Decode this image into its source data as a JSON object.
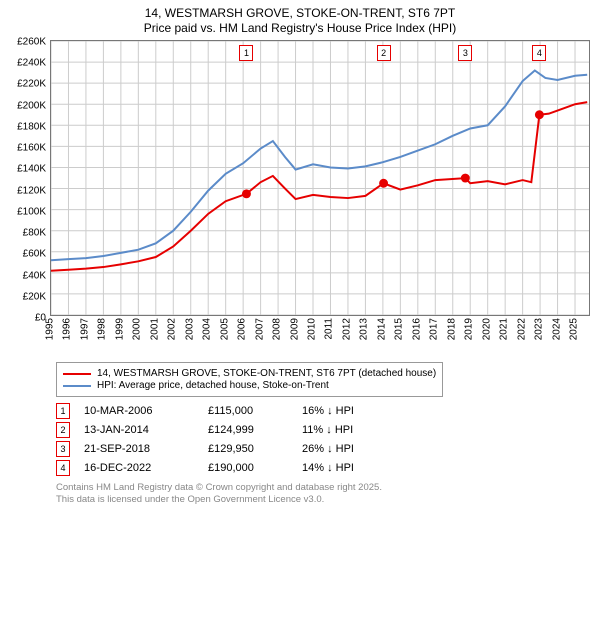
{
  "title": {
    "line1": "14, WESTMARSH GROVE, STOKE-ON-TRENT, ST6 7PT",
    "line2": "Price paid vs. HM Land Registry's House Price Index (HPI)",
    "fontsize": 12
  },
  "chart": {
    "type": "line",
    "background_color": "#ffffff",
    "grid_color": "#cccccc",
    "axis_color": "#777777",
    "ylim": [
      0,
      260000
    ],
    "ytick_step": 20000,
    "yticks": [
      "£0",
      "£20K",
      "£40K",
      "£60K",
      "£80K",
      "£100K",
      "£120K",
      "£140K",
      "£160K",
      "£180K",
      "£200K",
      "£220K",
      "£240K",
      "£260K"
    ],
    "xlim": [
      1995,
      2025.8
    ],
    "xticks": [
      "1995",
      "1996",
      "1997",
      "1998",
      "1999",
      "2000",
      "2001",
      "2002",
      "2003",
      "2004",
      "2005",
      "2006",
      "2007",
      "2008",
      "2009",
      "2010",
      "2011",
      "2012",
      "2013",
      "2014",
      "2015",
      "2016",
      "2017",
      "2018",
      "2019",
      "2020",
      "2021",
      "2022",
      "2023",
      "2024",
      "2025"
    ],
    "tick_fontsize": 10,
    "series": [
      {
        "name": "hpi",
        "label": "HPI: Average price, detached house, Stoke-on-Trent",
        "color": "#5b8bc9",
        "line_width": 2,
        "points": [
          [
            1995,
            52000
          ],
          [
            1996,
            53000
          ],
          [
            1997,
            54000
          ],
          [
            1998,
            56000
          ],
          [
            1999,
            59000
          ],
          [
            2000,
            62000
          ],
          [
            2001,
            68000
          ],
          [
            2002,
            80000
          ],
          [
            2003,
            98000
          ],
          [
            2004,
            118000
          ],
          [
            2005,
            134000
          ],
          [
            2006,
            144000
          ],
          [
            2007,
            158000
          ],
          [
            2007.7,
            165000
          ],
          [
            2008.4,
            150000
          ],
          [
            2009,
            138000
          ],
          [
            2010,
            143000
          ],
          [
            2011,
            140000
          ],
          [
            2012,
            139000
          ],
          [
            2013,
            141000
          ],
          [
            2014,
            145000
          ],
          [
            2015,
            150000
          ],
          [
            2016,
            156000
          ],
          [
            2017,
            162000
          ],
          [
            2018,
            170000
          ],
          [
            2019,
            177000
          ],
          [
            2020,
            180000
          ],
          [
            2021,
            198000
          ],
          [
            2022,
            222000
          ],
          [
            2022.7,
            232000
          ],
          [
            2023.3,
            225000
          ],
          [
            2024,
            223000
          ],
          [
            2025,
            227000
          ],
          [
            2025.7,
            228000
          ]
        ]
      },
      {
        "name": "property",
        "label": "14, WESTMARSH GROVE, STOKE-ON-TRENT, ST6 7PT (detached house)",
        "color": "#e60000",
        "line_width": 2.5,
        "points": [
          [
            1995,
            42000
          ],
          [
            1996,
            43000
          ],
          [
            1997,
            44000
          ],
          [
            1998,
            45500
          ],
          [
            1999,
            48000
          ],
          [
            2000,
            51000
          ],
          [
            2001,
            55000
          ],
          [
            2002,
            65000
          ],
          [
            2003,
            80000
          ],
          [
            2004,
            96000
          ],
          [
            2005,
            108000
          ],
          [
            2006.19,
            115000
          ],
          [
            2007,
            126000
          ],
          [
            2007.7,
            132000
          ],
          [
            2008.4,
            120000
          ],
          [
            2009,
            110000
          ],
          [
            2010,
            114000
          ],
          [
            2011,
            112000
          ],
          [
            2012,
            111000
          ],
          [
            2013,
            113000
          ],
          [
            2014.04,
            124999
          ],
          [
            2015,
            119000
          ],
          [
            2016,
            123000
          ],
          [
            2017,
            128000
          ],
          [
            2018.72,
            129950
          ],
          [
            2019,
            125000
          ],
          [
            2020,
            127000
          ],
          [
            2021,
            124000
          ],
          [
            2022,
            128000
          ],
          [
            2022.5,
            126000
          ],
          [
            2022.96,
            190000
          ],
          [
            2023.5,
            191000
          ],
          [
            2024,
            194000
          ],
          [
            2025,
            200000
          ],
          [
            2025.7,
            202000
          ]
        ]
      }
    ],
    "sale_markers": [
      {
        "idx": "1",
        "year": 2006.19,
        "price": 115000
      },
      {
        "idx": "2",
        "year": 2014.04,
        "price": 124999
      },
      {
        "idx": "3",
        "year": 2018.72,
        "price": 129950
      },
      {
        "idx": "4",
        "year": 2022.96,
        "price": 190000
      }
    ]
  },
  "legend": {
    "items": [
      {
        "color": "#e60000",
        "label": "14, WESTMARSH GROVE, STOKE-ON-TRENT, ST6 7PT (detached house)"
      },
      {
        "color": "#5b8bc9",
        "label": "HPI: Average price, detached house, Stoke-on-Trent"
      }
    ]
  },
  "sales": [
    {
      "idx": "1",
      "date": "10-MAR-2006",
      "price": "£115,000",
      "diff_pct": "16%",
      "diff_dir": "down",
      "diff_suffix": "HPI"
    },
    {
      "idx": "2",
      "date": "13-JAN-2014",
      "price": "£124,999",
      "diff_pct": "11%",
      "diff_dir": "down",
      "diff_suffix": "HPI"
    },
    {
      "idx": "3",
      "date": "21-SEP-2018",
      "price": "£129,950",
      "diff_pct": "26%",
      "diff_dir": "down",
      "diff_suffix": "HPI"
    },
    {
      "idx": "4",
      "date": "16-DEC-2022",
      "price": "£190,000",
      "diff_pct": "14%",
      "diff_dir": "down",
      "diff_suffix": "HPI"
    }
  ],
  "footer": {
    "line1": "Contains HM Land Registry data © Crown copyright and database right 2025.",
    "line2": "This data is licensed under the Open Government Licence v3.0."
  },
  "arrows": {
    "down": "↓",
    "up": "↑"
  }
}
